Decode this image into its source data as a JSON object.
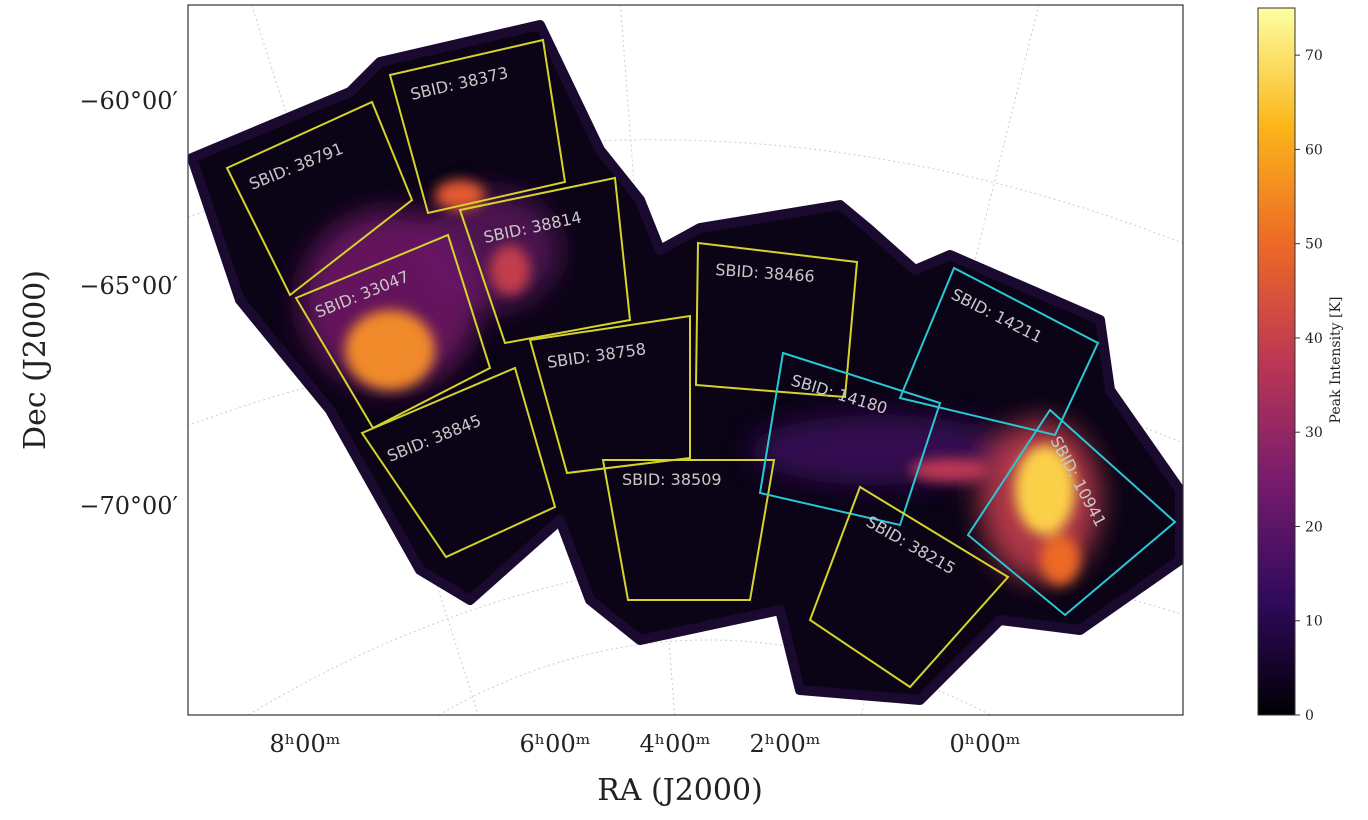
{
  "axes": {
    "x_label": "RA (J2000)",
    "y_label": "Dec (J2000)",
    "x_ticks": [
      "8ʰ00ᵐ",
      "6ʰ00ᵐ",
      "4ʰ00ᵐ",
      "2ʰ00ᵐ",
      "0ʰ00ᵐ"
    ],
    "y_ticks": [
      "−60°00′",
      "−65°00′",
      "−70°00′"
    ]
  },
  "colorbar": {
    "label": "Peak Intensity [K]",
    "lim": [
      0,
      75
    ],
    "ticks": [
      0,
      10,
      20,
      30,
      40,
      50,
      60,
      70
    ],
    "colors": [
      "#000004",
      "#320a5e",
      "#781c6d",
      "#bc3754",
      "#ed6925",
      "#fbb61a",
      "#fcffa4"
    ]
  },
  "fields": [
    {
      "label": "SBID: 38373",
      "color": "#d4d42a"
    },
    {
      "label": "SBID: 38791",
      "color": "#d4d42a"
    },
    {
      "label": "SBID: 38814",
      "color": "#d4d42a"
    },
    {
      "label": "SBID: 33047",
      "color": "#d4d42a"
    },
    {
      "label": "SBID: 38466",
      "color": "#d4d42a"
    },
    {
      "label": "SBID: 38758",
      "color": "#d4d42a"
    },
    {
      "label": "SBID: 38845",
      "color": "#d4d42a"
    },
    {
      "label": "SBID: 38509",
      "color": "#d4d42a"
    },
    {
      "label": "SBID: 14180",
      "color": "#2ac8d4"
    },
    {
      "label": "SBID: 14211",
      "color": "#2ac8d4"
    },
    {
      "label": "SBID: 10941",
      "color": "#2ac8d4"
    },
    {
      "label": "SBID: 38215",
      "color": "#d4d42a"
    }
  ]
}
